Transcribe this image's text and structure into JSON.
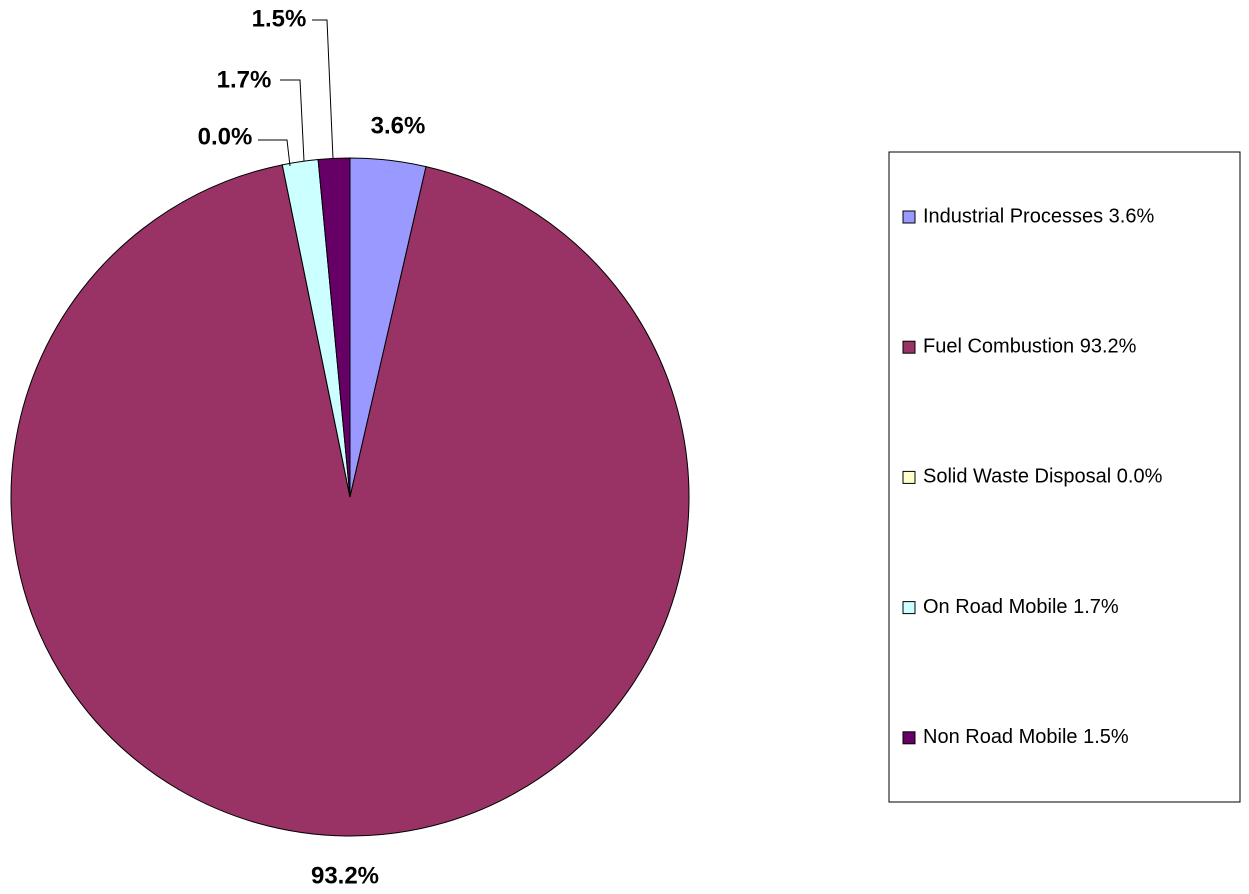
{
  "chart_data": {
    "type": "pie",
    "categories": [
      "Industrial Processes 3.6%",
      "Fuel Combustion 93.2%",
      "Solid Waste Disposal 0.0%",
      "On Road Mobile 1.7%",
      "Non Road Mobile 1.5%"
    ],
    "values": [
      3.6,
      93.2,
      0.0,
      1.7,
      1.5
    ],
    "value_labels": [
      "3.6%",
      "93.2%",
      "0.0%",
      "1.7%",
      "1.5%"
    ],
    "colors": [
      "#9999ff",
      "#993366",
      "#ffffcc",
      "#ccffff",
      "#660066"
    ],
    "legend": "right"
  }
}
